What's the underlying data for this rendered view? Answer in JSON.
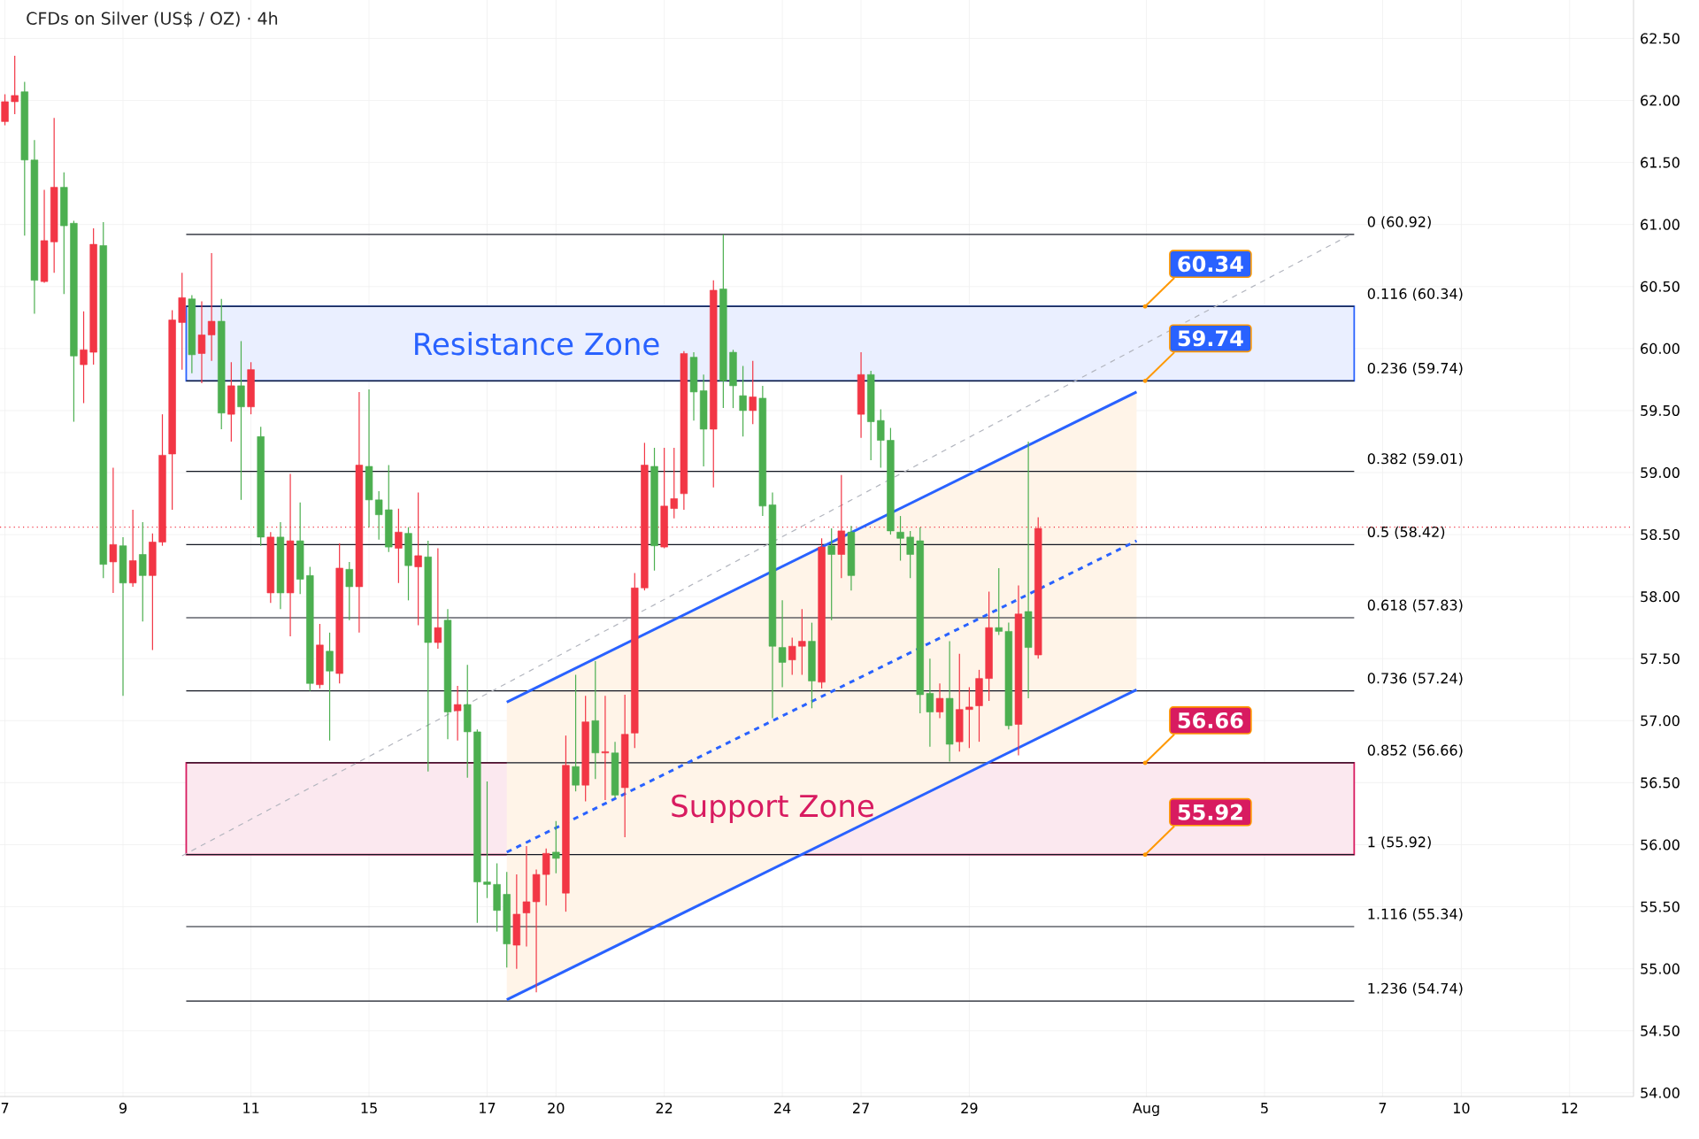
{
  "chart_data": {
    "type": "candlestick",
    "title": "CFDs on Silver (US$ / OZ) · 4h",
    "categories": [
      "7",
      null,
      null,
      null,
      null,
      null,
      null,
      null,
      null,
      null,
      null,
      null,
      "9",
      null,
      null,
      null,
      null,
      null,
      null,
      null,
      null,
      null,
      null,
      null,
      null,
      "11",
      null,
      null,
      null,
      null,
      null,
      null,
      null,
      null,
      null,
      null,
      null,
      "15",
      null,
      null,
      null,
      null,
      null,
      null,
      null,
      null,
      null,
      null,
      null,
      "17",
      null,
      null,
      null,
      null,
      null,
      null,
      "20",
      null,
      null,
      null,
      null,
      null,
      null,
      null,
      null,
      null,
      null,
      "22",
      null,
      null,
      null,
      null,
      null,
      null,
      null,
      null,
      null,
      null,
      null,
      "24",
      null,
      null,
      null,
      null,
      null,
      null,
      null,
      "27",
      null,
      null,
      null,
      null,
      null,
      null,
      null,
      null,
      null,
      null,
      "29",
      null,
      null,
      null,
      null,
      null,
      null,
      null,
      null,
      null,
      null,
      null,
      null,
      null,
      null,
      null,
      null,
      null,
      "Aug",
      null,
      null,
      null,
      null,
      null,
      null,
      null,
      null,
      null,
      null,
      null,
      "5",
      null,
      null,
      null,
      null,
      null,
      null,
      null,
      null,
      null,
      null,
      null,
      "7",
      null,
      null,
      null,
      null,
      null,
      null,
      null,
      "10",
      null,
      null,
      null,
      null,
      null,
      null,
      null,
      null,
      null,
      null,
      "12",
      null,
      null,
      null,
      null,
      null,
      null
    ],
    "ohlc": [
      [
        61.99,
        62.05,
        61.8,
        61.83
      ],
      [
        62.04,
        62.36,
        61.89,
        61.99
      ],
      [
        61.52,
        62.15,
        60.91,
        62.07
      ],
      [
        60.55,
        61.68,
        60.28,
        61.52
      ],
      [
        60.87,
        61.28,
        60.53,
        60.54
      ],
      [
        61.3,
        61.86,
        60.61,
        60.86
      ],
      [
        60.99,
        61.42,
        60.44,
        61.3
      ],
      [
        59.94,
        61.03,
        59.41,
        61.01
      ],
      [
        59.99,
        60.3,
        59.56,
        59.87
      ],
      [
        60.84,
        60.97,
        59.87,
        59.97
      ],
      [
        58.26,
        61.02,
        58.15,
        60.83
      ],
      [
        58.42,
        59.04,
        58.03,
        58.28
      ],
      [
        58.11,
        58.48,
        57.2,
        58.41
      ],
      [
        58.29,
        58.7,
        58.08,
        58.11
      ],
      [
        58.17,
        58.6,
        57.8,
        58.34
      ],
      [
        58.44,
        58.51,
        57.57,
        58.17
      ],
      [
        59.14,
        59.47,
        58.41,
        58.44
      ],
      [
        60.23,
        60.31,
        58.7,
        59.15
      ],
      [
        60.41,
        60.61,
        59.83,
        60.21
      ],
      [
        59.95,
        60.43,
        59.8,
        60.4
      ],
      [
        60.11,
        60.38,
        59.72,
        59.96
      ],
      [
        60.22,
        60.77,
        59.9,
        60.11
      ],
      [
        59.48,
        60.4,
        59.35,
        60.22
      ],
      [
        59.7,
        59.89,
        59.25,
        59.47
      ],
      [
        59.53,
        60.06,
        58.78,
        59.7
      ],
      [
        59.83,
        59.89,
        59.47,
        59.53
      ],
      [
        58.48,
        59.37,
        58.41,
        59.29
      ],
      [
        58.48,
        58.52,
        57.95,
        58.03
      ],
      [
        58.03,
        58.6,
        57.9,
        58.48
      ],
      [
        58.45,
        58.99,
        57.68,
        58.03
      ],
      [
        58.14,
        58.76,
        58.02,
        58.45
      ],
      [
        57.3,
        58.24,
        57.24,
        58.17
      ],
      [
        57.61,
        57.78,
        57.26,
        57.29
      ],
      [
        57.4,
        57.71,
        56.84,
        57.56
      ],
      [
        58.23,
        58.43,
        57.3,
        57.38
      ],
      [
        58.08,
        58.28,
        57.81,
        58.22
      ],
      [
        59.06,
        59.65,
        57.71,
        58.08
      ],
      [
        58.78,
        59.67,
        58.56,
        59.05
      ],
      [
        58.66,
        58.85,
        58.46,
        58.78
      ],
      [
        58.4,
        59.06,
        58.36,
        58.7
      ],
      [
        58.52,
        58.71,
        58.11,
        58.39
      ],
      [
        58.25,
        58.56,
        57.97,
        58.51
      ],
      [
        58.33,
        58.84,
        57.77,
        58.24
      ],
      [
        57.63,
        58.45,
        56.59,
        58.32
      ],
      [
        57.75,
        58.39,
        57.58,
        57.63
      ],
      [
        57.07,
        57.9,
        56.85,
        57.81
      ],
      [
        57.13,
        57.28,
        56.84,
        57.08
      ],
      [
        56.91,
        57.45,
        56.54,
        57.13
      ],
      [
        55.7,
        56.93,
        55.37,
        56.91
      ],
      [
        55.68,
        56.51,
        55.57,
        55.7
      ],
      [
        55.47,
        55.85,
        55.3,
        55.68
      ],
      [
        55.2,
        55.78,
        55.01,
        55.6
      ],
      [
        55.44,
        55.76,
        55.0,
        55.19
      ],
      [
        55.54,
        55.99,
        55.18,
        55.45
      ],
      [
        55.76,
        55.8,
        54.81,
        55.54
      ],
      [
        55.93,
        55.97,
        55.51,
        55.76
      ],
      [
        55.89,
        56.19,
        55.77,
        55.94
      ],
      [
        56.64,
        56.88,
        55.46,
        55.61
      ],
      [
        56.48,
        57.37,
        56.43,
        56.63
      ],
      [
        56.99,
        57.2,
        56.35,
        56.48
      ],
      [
        56.74,
        57.48,
        56.53,
        57.0
      ],
      [
        56.75,
        57.2,
        56.36,
        56.74
      ],
      [
        56.4,
        56.83,
        56.38,
        56.74
      ],
      [
        56.89,
        57.21,
        56.06,
        56.46
      ],
      [
        58.07,
        58.19,
        56.78,
        56.9
      ],
      [
        59.06,
        59.24,
        58.05,
        58.07
      ],
      [
        58.41,
        59.2,
        58.21,
        59.05
      ],
      [
        58.73,
        59.2,
        58.39,
        58.4
      ],
      [
        58.79,
        59.2,
        58.63,
        58.71
      ],
      [
        59.96,
        59.98,
        58.7,
        58.83
      ],
      [
        59.65,
        59.97,
        59.42,
        59.93
      ],
      [
        59.35,
        59.79,
        59.05,
        59.66
      ],
      [
        60.47,
        60.55,
        58.88,
        59.35
      ],
      [
        59.74,
        60.92,
        59.52,
        60.48
      ],
      [
        59.7,
        59.99,
        59.52,
        59.97
      ],
      [
        59.5,
        59.86,
        59.29,
        59.62
      ],
      [
        59.61,
        59.9,
        59.39,
        59.5
      ],
      [
        58.73,
        59.7,
        58.65,
        59.6
      ],
      [
        57.6,
        58.84,
        57.02,
        58.74
      ],
      [
        57.47,
        57.97,
        57.27,
        57.59
      ],
      [
        57.6,
        57.67,
        57.37,
        57.49
      ],
      [
        57.64,
        57.9,
        57.37,
        57.6
      ],
      [
        57.32,
        57.79,
        57.1,
        57.64
      ],
      [
        58.4,
        58.47,
        57.26,
        57.31
      ],
      [
        58.34,
        58.55,
        57.81,
        58.41
      ],
      [
        58.53,
        58.98,
        58.15,
        58.34
      ],
      [
        58.17,
        58.57,
        58.05,
        58.52
      ],
      [
        59.79,
        59.97,
        59.28,
        59.47
      ],
      [
        59.41,
        59.82,
        59.1,
        59.79
      ],
      [
        59.26,
        59.51,
        59.04,
        59.42
      ],
      [
        58.53,
        59.36,
        58.5,
        59.26
      ],
      [
        58.47,
        58.65,
        58.29,
        58.52
      ],
      [
        58.34,
        58.53,
        58.15,
        58.48
      ],
      [
        57.21,
        58.56,
        57.06,
        58.45
      ],
      [
        57.07,
        57.5,
        56.79,
        57.22
      ],
      [
        57.18,
        57.3,
        57.02,
        57.07
      ],
      [
        56.81,
        57.64,
        56.67,
        57.18
      ],
      [
        57.09,
        57.54,
        56.75,
        56.83
      ],
      [
        57.11,
        57.27,
        56.78,
        57.09
      ],
      [
        57.34,
        57.41,
        56.83,
        57.12
      ],
      [
        57.75,
        58.04,
        57.16,
        57.34
      ],
      [
        57.72,
        58.23,
        57.69,
        57.75
      ],
      [
        56.96,
        57.79,
        56.93,
        57.72
      ],
      [
        57.86,
        58.09,
        56.72,
        56.97
      ],
      [
        57.59,
        59.25,
        57.18,
        57.88
      ],
      [
        58.55,
        58.64,
        57.5,
        57.53
      ],
      null,
      null,
      null,
      null,
      null,
      null,
      null,
      null,
      null,
      null,
      null,
      null,
      null,
      null,
      null,
      null,
      null,
      null,
      null,
      null,
      null,
      null,
      null,
      null,
      null,
      null,
      null,
      null,
      null,
      null,
      null,
      null,
      null,
      null,
      null,
      null,
      null,
      null,
      null,
      null,
      null,
      null,
      null,
      null,
      null,
      null,
      null,
      null,
      null,
      null,
      null,
      null,
      null,
      null,
      null,
      null,
      null,
      null,
      null,
      null
    ],
    "series": [
      {
        "type": "line",
        "color": "#2962ff",
        "line_style": "dashed",
        "values": [
          null,
          null,
          null,
          null,
          null,
          null,
          null,
          null,
          null,
          null,
          null,
          null,
          null,
          null,
          null,
          null,
          null,
          null,
          null,
          null,
          null,
          null,
          null,
          null,
          null,
          null,
          null,
          null,
          null,
          null,
          null,
          null,
          null,
          null,
          null,
          null,
          null,
          null,
          null,
          null,
          null,
          null,
          null,
          null,
          null,
          null,
          null,
          null,
          null,
          null,
          null,
          55.94,
          null,
          null,
          null,
          null,
          null,
          null,
          null,
          null,
          null,
          null,
          null,
          null,
          null,
          null,
          null,
          null,
          null,
          null,
          null,
          null,
          null,
          null,
          null,
          null,
          null,
          null,
          null,
          null,
          null,
          null,
          null,
          null,
          null,
          null,
          null,
          null,
          null,
          null,
          null,
          null,
          null,
          null,
          null,
          null,
          null,
          null,
          null,
          null,
          null,
          null,
          null,
          null,
          null,
          null,
          null,
          null,
          null,
          null,
          null,
          null,
          null,
          null,
          null,
          58.45,
          null,
          null,
          null,
          null,
          null,
          null,
          null,
          null,
          null,
          null,
          null,
          null,
          null,
          null,
          null,
          null,
          null,
          null,
          null,
          null,
          null,
          null,
          null,
          null,
          null,
          null,
          null,
          null,
          null,
          null,
          null,
          null,
          null,
          null,
          null,
          null,
          null,
          null,
          null,
          null,
          null,
          null,
          null,
          null,
          null,
          null,
          null,
          null,
          null,
          null
        ],
        "lower": [
          null,
          null,
          null,
          null,
          null,
          null,
          null,
          null,
          null,
          null,
          null,
          null,
          null,
          null,
          null,
          null,
          null,
          null,
          null,
          null,
          null,
          null,
          null,
          null,
          null,
          null,
          null,
          null,
          null,
          null,
          null,
          null,
          null,
          null,
          null,
          null,
          null,
          null,
          null,
          null,
          null,
          null,
          null,
          null,
          null,
          null,
          null,
          null,
          null,
          null,
          null,
          54.75,
          null,
          null,
          null,
          null,
          null,
          null,
          null,
          null,
          null,
          null,
          null,
          null,
          null,
          null,
          null,
          null,
          null,
          null,
          null,
          null,
          null,
          null,
          null,
          null,
          null,
          null,
          null,
          null,
          null,
          null,
          null,
          null,
          null,
          null,
          null,
          null,
          null,
          null,
          null,
          null,
          null,
          null,
          null,
          null,
          null,
          null,
          null,
          null,
          null,
          null,
          null,
          null,
          null,
          null,
          null,
          null,
          null,
          null,
          null,
          null,
          null,
          null,
          null,
          57.25,
          null,
          null,
          null,
          null,
          null,
          null,
          null,
          null,
          null,
          null,
          null,
          null,
          null,
          null,
          null,
          null,
          null,
          null,
          null,
          null,
          null,
          null,
          null,
          null,
          null,
          null,
          null,
          null,
          null,
          null,
          null,
          null,
          null,
          null,
          null,
          null,
          null,
          null,
          null,
          null,
          null,
          null,
          null,
          null,
          null,
          null,
          null,
          null,
          null,
          null
        ],
        "upper": [
          null,
          null,
          null,
          null,
          null,
          null,
          null,
          null,
          null,
          null,
          null,
          null,
          null,
          null,
          null,
          null,
          null,
          null,
          null,
          null,
          null,
          null,
          null,
          null,
          null,
          null,
          null,
          null,
          null,
          null,
          null,
          null,
          null,
          null,
          null,
          null,
          null,
          null,
          null,
          null,
          null,
          null,
          null,
          null,
          null,
          null,
          null,
          null,
          null,
          null,
          null,
          57.15,
          null,
          null,
          null,
          null,
          null,
          null,
          null,
          null,
          null,
          null,
          null,
          null,
          null,
          null,
          null,
          null,
          null,
          null,
          null,
          null,
          null,
          null,
          null,
          null,
          null,
          null,
          null,
          null,
          null,
          null,
          null,
          null,
          null,
          null,
          null,
          null,
          null,
          null,
          null,
          null,
          null,
          null,
          null,
          null,
          null,
          null,
          null,
          null,
          null,
          null,
          null,
          null,
          null,
          null,
          null,
          null,
          null,
          null,
          null,
          null,
          null,
          null,
          null,
          59.65,
          null,
          null,
          null,
          null,
          null,
          null,
          null,
          null,
          null,
          null,
          null,
          null,
          null,
          null,
          null,
          null,
          null,
          null,
          null,
          null,
          null,
          null,
          null,
          null,
          null,
          null,
          null,
          null,
          null,
          null,
          null,
          null,
          null,
          null,
          null,
          null,
          null,
          null,
          null,
          null,
          null,
          null,
          null,
          null,
          null,
          null,
          null,
          null,
          null,
          null
        ]
      },
      {
        "type": "line",
        "color": "#2962ff",
        "line_style": "solid",
        "values": [
          null,
          null,
          null,
          null,
          null,
          null,
          null,
          null,
          null,
          null,
          null,
          null,
          null,
          null,
          null,
          null,
          null,
          null,
          null,
          null,
          null,
          null,
          null,
          null,
          null,
          null,
          null,
          null,
          null,
          null,
          null,
          null,
          null,
          null,
          null,
          null,
          null,
          null,
          null,
          null,
          null,
          null,
          null,
          null,
          null,
          null,
          null,
          null,
          null,
          null,
          null,
          57.15,
          null,
          null,
          null,
          null,
          null,
          null,
          null,
          null,
          null,
          null,
          null,
          null,
          null,
          null,
          null,
          null,
          null,
          null,
          null,
          null,
          null,
          null,
          null,
          null,
          null,
          null,
          null,
          null,
          null,
          null,
          null,
          null,
          null,
          null,
          null,
          null,
          null,
          null,
          null,
          null,
          null,
          null,
          null,
          null,
          null,
          null,
          null,
          null,
          null,
          null,
          null,
          null,
          null,
          null,
          null,
          null,
          null,
          null,
          null,
          null,
          null,
          null,
          null,
          59.65,
          null,
          null,
          null,
          null,
          null,
          null,
          null,
          null,
          null,
          null,
          null,
          null,
          null,
          null,
          null,
          null,
          null,
          null,
          null,
          null,
          null,
          null,
          null,
          null,
          null,
          null,
          null,
          null,
          null,
          null,
          null,
          null,
          null,
          null,
          null,
          null,
          null,
          null,
          null,
          null,
          null,
          null,
          null,
          null,
          null,
          null,
          null,
          null,
          null,
          null
        ]
      },
      {
        "type": "line",
        "color": "#2962ff",
        "line_style": "solid",
        "values": [
          null,
          null,
          null,
          null,
          null,
          null,
          null,
          null,
          null,
          null,
          null,
          null,
          null,
          null,
          null,
          null,
          null,
          null,
          null,
          null,
          null,
          null,
          null,
          null,
          null,
          null,
          null,
          null,
          null,
          null,
          null,
          null,
          null,
          null,
          null,
          null,
          null,
          null,
          null,
          null,
          null,
          null,
          null,
          null,
          null,
          null,
          null,
          null,
          null,
          null,
          null,
          54.75,
          null,
          null,
          null,
          null,
          null,
          null,
          null,
          null,
          null,
          null,
          null,
          null,
          null,
          null,
          null,
          null,
          null,
          null,
          null,
          null,
          null,
          null,
          null,
          null,
          null,
          null,
          null,
          null,
          null,
          null,
          null,
          null,
          null,
          null,
          null,
          null,
          null,
          null,
          null,
          null,
          null,
          null,
          null,
          null,
          null,
          null,
          null,
          null,
          null,
          null,
          null,
          null,
          null,
          null,
          null,
          null,
          null,
          null,
          null,
          null,
          null,
          null,
          null,
          57.25,
          null,
          null,
          null,
          null,
          null,
          null,
          null,
          null,
          null,
          null,
          null,
          null,
          null,
          null,
          null,
          null,
          null,
          null,
          null,
          null,
          null,
          null,
          null,
          null,
          null,
          null,
          null,
          null,
          null,
          null,
          null,
          null,
          null,
          null,
          null,
          null,
          null,
          null,
          null,
          null,
          null,
          null,
          null,
          null,
          null,
          null,
          null,
          null,
          null,
          null
        ]
      },
      {
        "type": "line",
        "color": "#b2b5be",
        "line_style": "dashed",
        "values": [
          null,
          null,
          null,
          null,
          null,
          null,
          null,
          null,
          null,
          null,
          null,
          null,
          null,
          null,
          null,
          null,
          null,
          null,
          55.91,
          null,
          null,
          null,
          null,
          null,
          null,
          null,
          null,
          null,
          null,
          null,
          null,
          null,
          null,
          null,
          null,
          null,
          null,
          null,
          null,
          null,
          null,
          null,
          null,
          null,
          null,
          null,
          null,
          null,
          null,
          null,
          null,
          null,
          null,
          null,
          null,
          null,
          null,
          null,
          null,
          null,
          null,
          null,
          null,
          null,
          null,
          null,
          null,
          null,
          null,
          null,
          null,
          null,
          null,
          null,
          null,
          null,
          null,
          null,
          null,
          null,
          null,
          null,
          null,
          null,
          null,
          null,
          null,
          null,
          null,
          null,
          null,
          null,
          null,
          null,
          null,
          null,
          null,
          null,
          null,
          null,
          null,
          null,
          null,
          null,
          null,
          null,
          null,
          null,
          null,
          null,
          null,
          null,
          null,
          null,
          null,
          null,
          null,
          null,
          null,
          null,
          null,
          null,
          null,
          null,
          null,
          null,
          null,
          null,
          null,
          null,
          null,
          null,
          null,
          null,
          null,
          null,
          null,
          60.93,
          null,
          null,
          null,
          null,
          null,
          null,
          null,
          null,
          null,
          null,
          null,
          null,
          null,
          null,
          null,
          null,
          null,
          null,
          null,
          null,
          null,
          null,
          null,
          null,
          null,
          null,
          null,
          null
        ]
      }
    ],
    "ylim": [
      53.97,
      62.81
    ],
    "yticks": [
      {
        "value": 54.0,
        "label": "54.00"
      },
      {
        "value": 54.5,
        "label": "54.50"
      },
      {
        "value": 55.0,
        "label": "55.00"
      },
      {
        "value": 55.5,
        "label": "55.50"
      },
      {
        "value": 56.0,
        "label": "56.00"
      },
      {
        "value": 56.5,
        "label": "56.50"
      },
      {
        "value": 57.0,
        "label": "57.00"
      },
      {
        "value": 57.5,
        "label": "57.50"
      },
      {
        "value": 58.0,
        "label": "58.00"
      },
      {
        "value": 58.5,
        "label": "58.50"
      },
      {
        "value": 59.0,
        "label": "59.00"
      },
      {
        "value": 59.5,
        "label": "59.50"
      },
      {
        "value": 60.0,
        "label": "60.00"
      },
      {
        "value": 60.5,
        "label": "60.50"
      },
      {
        "value": 61.0,
        "label": "61.00"
      },
      {
        "value": 61.5,
        "label": "61.50"
      },
      {
        "value": 62.0,
        "label": "62.00"
      },
      {
        "value": 62.5,
        "label": "62.50"
      }
    ],
    "grid": true,
    "ref_lines": [
      {
        "axis": "y",
        "value": 60.92,
        "label": "0 (60.92)"
      },
      {
        "axis": "y",
        "value": 60.34,
        "label": "0.116 (60.34)"
      },
      {
        "axis": "y",
        "value": 59.74,
        "label": "0.236 (59.74)"
      },
      {
        "axis": "y",
        "value": 59.01,
        "label": "0.382 (59.01)"
      },
      {
        "axis": "y",
        "value": 58.42,
        "label": "0.5 (58.42)"
      },
      {
        "axis": "y",
        "value": 57.83,
        "label": "0.618 (57.83)"
      },
      {
        "axis": "y",
        "value": 57.24,
        "label": "0.736 (57.24)"
      },
      {
        "axis": "y",
        "value": 56.66,
        "label": "0.852 (56.66)"
      },
      {
        "axis": "y",
        "value": 55.92,
        "label": "1 (55.92)"
      },
      {
        "axis": "y",
        "value": 55.34,
        "label": "1.116 (55.34)"
      },
      {
        "axis": "y",
        "value": 54.74,
        "label": "1.236 (54.74)"
      },
      {
        "axis": "y",
        "value": 58.56,
        "color": "#f23645",
        "line_style": "dotted"
      }
    ],
    "bands": [
      {
        "axis": "y",
        "from": 59.74,
        "to": 60.34,
        "label": "Resistance Zone",
        "color": "#2962ff"
      },
      {
        "axis": "y",
        "from": 55.92,
        "to": 56.66,
        "label": "Support Zone",
        "color": "#d81b60"
      }
    ],
    "annotations": [
      {
        "text": "60.34",
        "y": 60.34
      },
      {
        "text": "59.74",
        "y": 59.74
      },
      {
        "text": "56.66",
        "y": 56.66
      },
      {
        "text": "55.92",
        "y": 55.92
      }
    ]
  }
}
